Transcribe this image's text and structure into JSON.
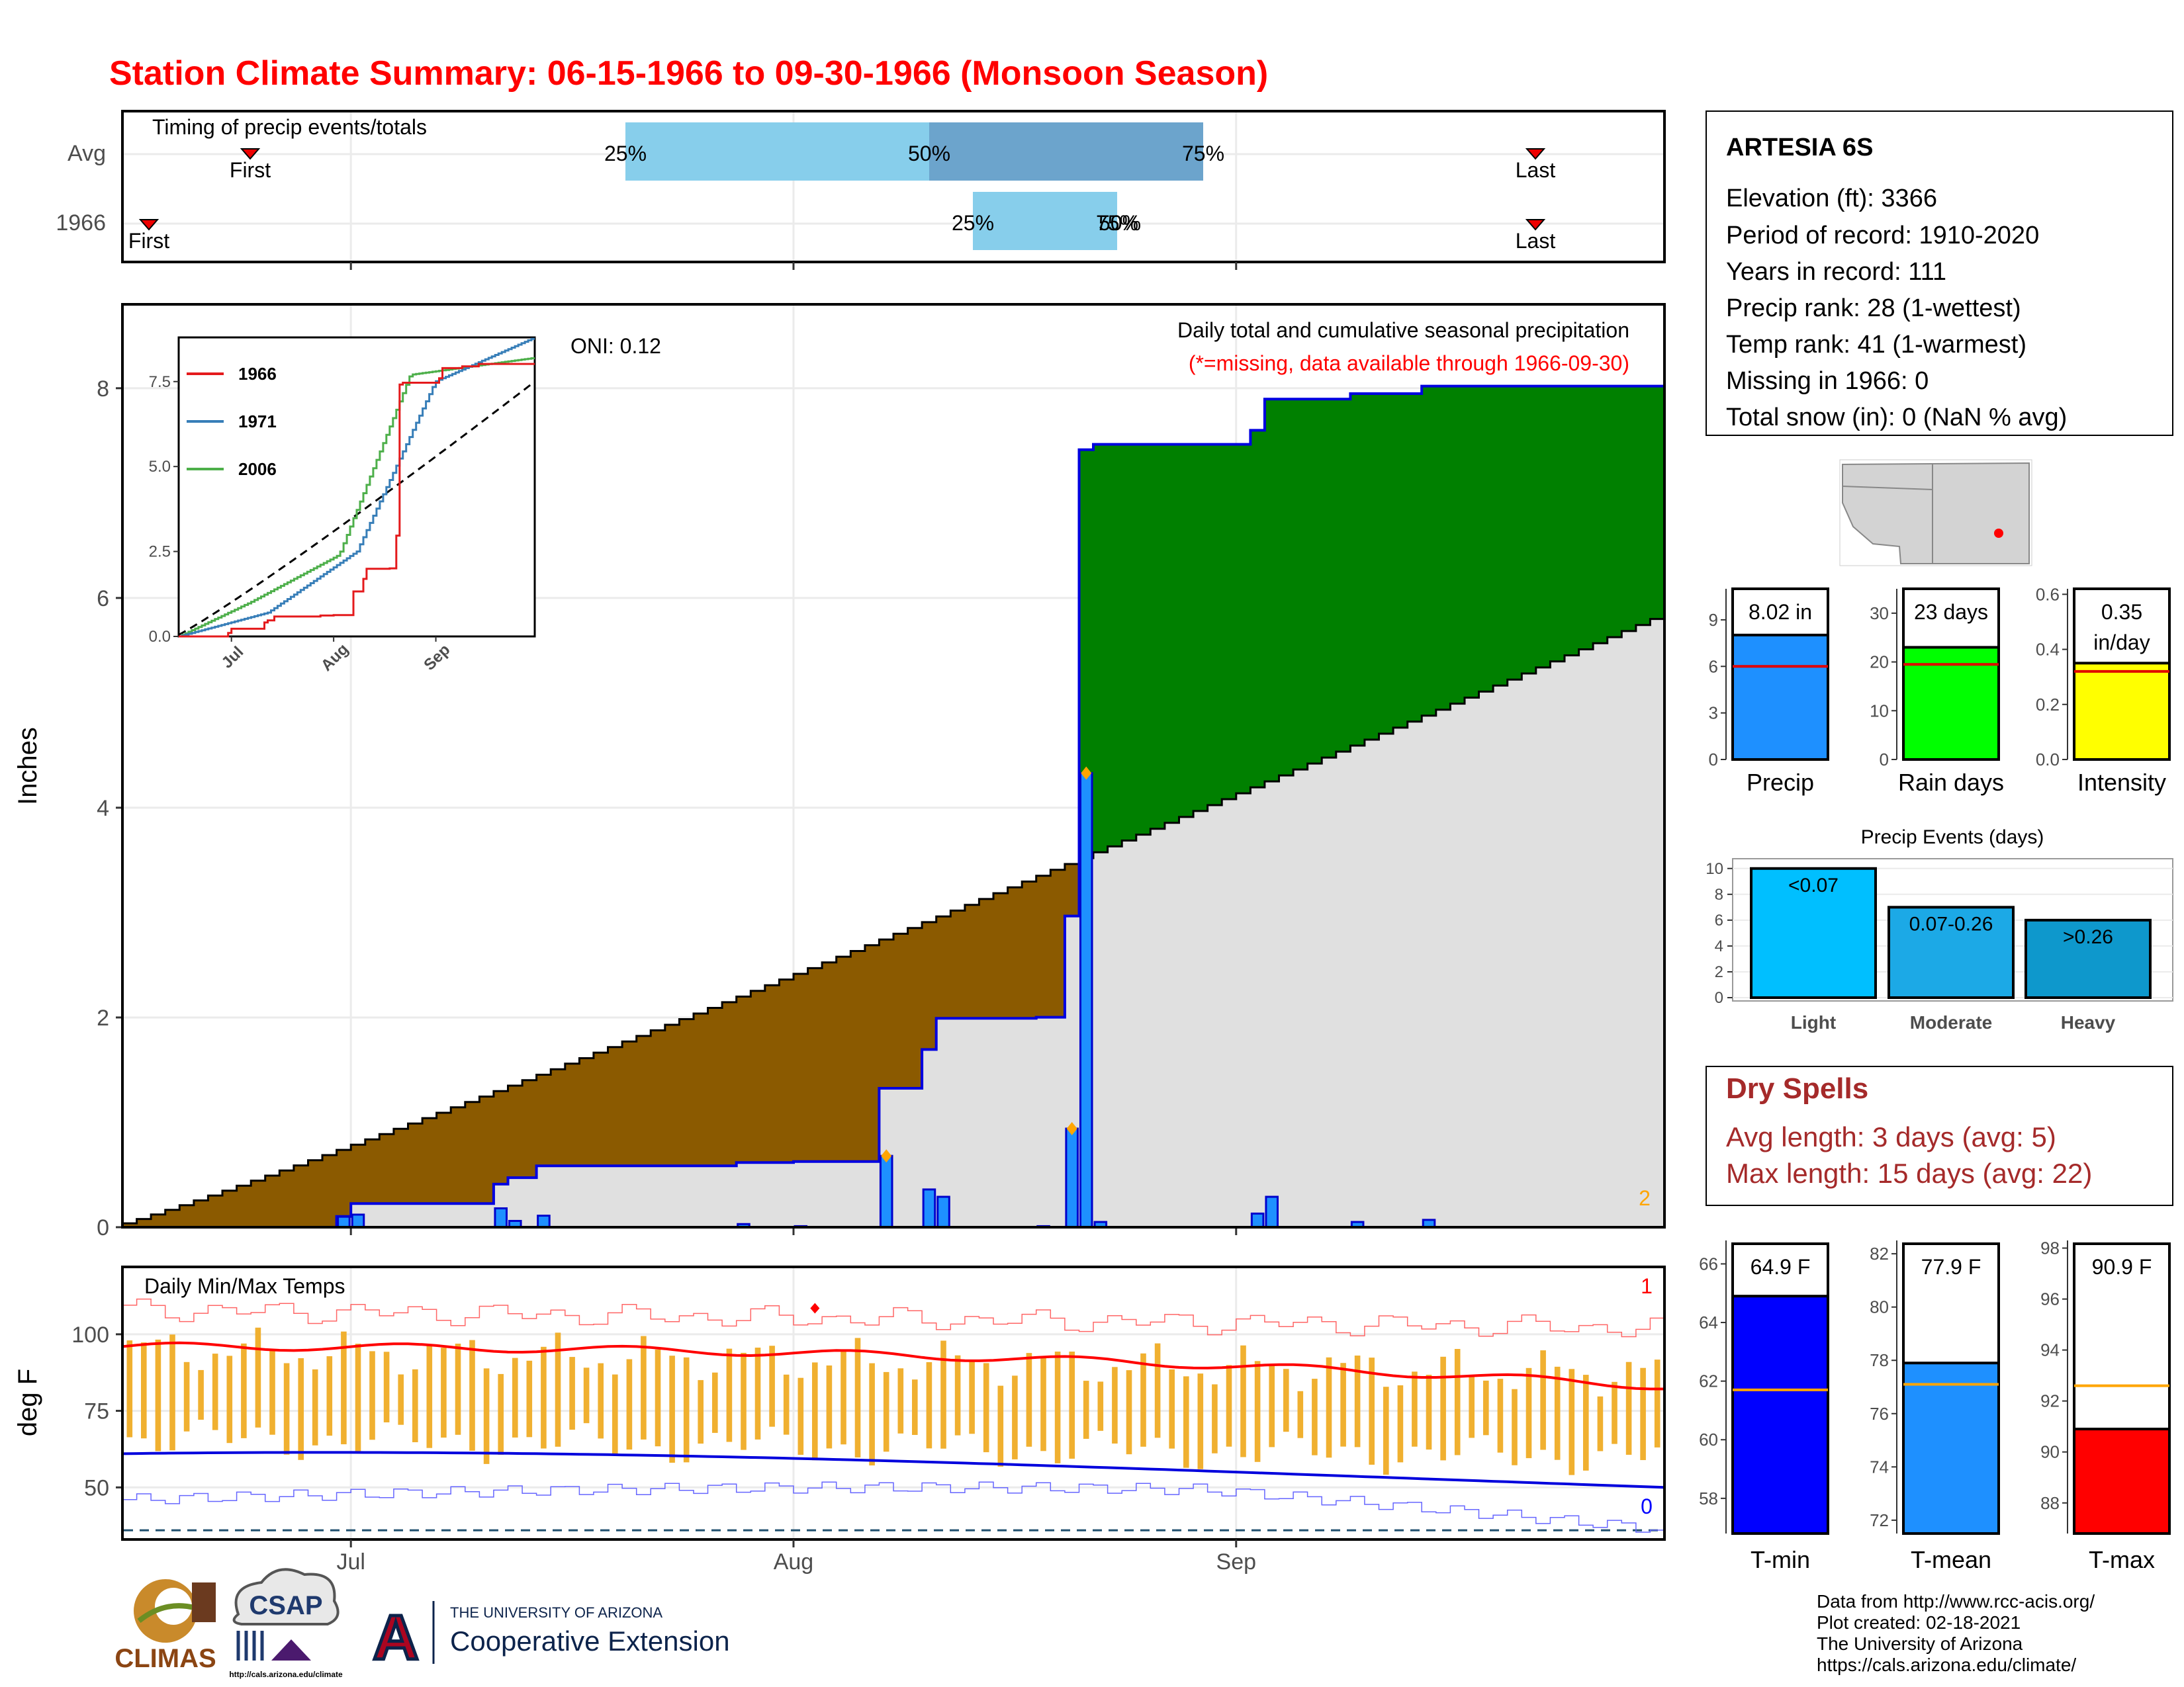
{
  "title": "Station Climate Summary: 06-15-1966 to 09-30-1966 (Monsoon Season)",
  "month_labels": [
    "Jul",
    "Aug",
    "Sep"
  ],
  "timing": {
    "label": "Timing of precip events/totals",
    "rows": [
      "Avg",
      "1966"
    ],
    "avg": {
      "first": "First",
      "last": "Last",
      "q25": "25%",
      "q50": "50%",
      "q75": "75%"
    },
    "y1966": {
      "first": "First",
      "last": "Last",
      "q25": "25%",
      "q50_75": "75%",
      "q50": "50%"
    }
  },
  "station": {
    "name": "ARTESIA 6S",
    "lines": [
      "Elevation (ft): 3366",
      "Period of record: 1910-2020",
      "Years in record: 111",
      "Precip rank: 28 (1-wettest)",
      "Temp rank: 41 (1-warmest)",
      "Missing in 1966: 0",
      "Total snow (in): 0 (NaN % avg)"
    ]
  },
  "precip_panel": {
    "ylabel": "Inches",
    "note1": "Daily total and cumulative seasonal precipitation",
    "note2": "(*=missing, data available through 1966-09-30)",
    "oni": "ONI: 0.12",
    "corner_count": "2"
  },
  "temp_panel": {
    "ylabel": "deg F",
    "label": "Daily Min/Max Temps",
    "count_top": "1",
    "count_bottom": "0"
  },
  "inset": {
    "series": [
      {
        "name": "1966",
        "color": "#e41a1c"
      },
      {
        "name": "1971",
        "color": "#377eb8"
      },
      {
        "name": "2006",
        "color": "#4daf4a"
      }
    ],
    "yticks": [
      "0.0",
      "2.5",
      "5.0",
      "7.5"
    ],
    "xticks": [
      "Jul",
      "Aug",
      "Sep"
    ]
  },
  "mini_bars": [
    {
      "label": "Precip",
      "value_text": "8.02 in",
      "color": "#1e90ff",
      "ticks": [
        "0",
        "3",
        "6",
        "9"
      ]
    },
    {
      "label": "Rain days",
      "value_text": "23 days",
      "color": "#00ff00",
      "ticks": [
        "0",
        "10",
        "20",
        "30"
      ]
    },
    {
      "label": "Intensity",
      "value_text": "0.35",
      "value_text2": "in/day",
      "color": "#ffff00",
      "ticks": [
        "0.0",
        "0.2",
        "0.4",
        "0.6"
      ]
    }
  ],
  "events": {
    "title": "Precip Events (days)",
    "bars": [
      {
        "label": "Light",
        "value_text": "<0.07",
        "color": "#00bfff"
      },
      {
        "label": "Moderate",
        "value_text": "0.07-0.26",
        "color": "#1ca9e6"
      },
      {
        "label": "Heavy",
        "value_text": ">0.26",
        "color": "#0e98cc"
      }
    ],
    "ticks": [
      "0",
      "2",
      "4",
      "6",
      "8",
      "10"
    ]
  },
  "dry_spells": {
    "title": "Dry Spells",
    "avg": "Avg length: 3 days (avg: 5)",
    "max": "Max length: 15 days (avg: 22)"
  },
  "temp_bars": [
    {
      "label": "T-min",
      "value_text": "64.9 F",
      "color": "#0000ff",
      "ticks": [
        "58",
        "60",
        "62",
        "64",
        "66"
      ]
    },
    {
      "label": "T-mean",
      "value_text": "77.9 F",
      "color": "#1e90ff",
      "ticks": [
        "72",
        "74",
        "76",
        "78",
        "80",
        "82"
      ]
    },
    {
      "label": "T-max",
      "value_text": "90.9 F",
      "color": "#ff0000",
      "ticks": [
        "88",
        "90",
        "92",
        "94",
        "96",
        "98"
      ]
    }
  ],
  "footer": {
    "lines": [
      "Data from http://www.rcc-acis.org/",
      "Plot created: 02-18-2021",
      "The University of Arizona",
      "https://cals.arizona.edu/climate/"
    ]
  },
  "logos": {
    "climas": "CLIMAS",
    "csap": "CSAP",
    "csap_url": "http://cals.arizona.edu/climate",
    "ua_top": "THE UNIVERSITY OF ARIZONA",
    "ua_bottom": "Cooperative Extension",
    "ua_letter": "A"
  },
  "chart_data": [
    {
      "type": "area",
      "title": "Daily total and cumulative seasonal precipitation",
      "ylabel": "Inches",
      "ylim": [
        0,
        8.8
      ],
      "x_start": "1966-06-15",
      "x_end": "1966-09-30",
      "daily_precip": [
        {
          "date": "1966-06-30",
          "value": 0.1
        },
        {
          "date": "1966-07-01",
          "value": 0.12
        },
        {
          "date": "1966-07-11",
          "value": 0.18
        },
        {
          "date": "1966-07-12",
          "value": 0.06
        },
        {
          "date": "1966-07-14",
          "value": 0.11
        },
        {
          "date": "1966-07-28",
          "value": 0.03
        },
        {
          "date": "1966-08-01",
          "value": 0.01
        },
        {
          "date": "1966-08-07",
          "value": 0.68
        },
        {
          "date": "1966-08-10",
          "value": 0.36
        },
        {
          "date": "1966-08-11",
          "value": 0.29
        },
        {
          "date": "1966-08-18",
          "value": 0.01
        },
        {
          "date": "1966-08-20",
          "value": 0.94
        },
        {
          "date": "1966-08-21",
          "value": 4.33
        },
        {
          "date": "1966-08-22",
          "value": 0.05
        },
        {
          "date": "1966-09-02",
          "value": 0.13
        },
        {
          "date": "1966-09-03",
          "value": 0.29
        },
        {
          "date": "1966-09-09",
          "value": 0.05
        },
        {
          "date": "1966-09-14",
          "value": 0.07
        }
      ],
      "cumulative_1966_end": 8.02,
      "average_cumulative_end": 5.8
    },
    {
      "type": "line",
      "title": "Daily Min/Max Temps",
      "ylabel": "deg F",
      "yticks": [
        50,
        75,
        100
      ],
      "avg_max_start": 96,
      "avg_max_end": 83,
      "avg_min_start": 61,
      "avg_min_end": 50
    },
    {
      "type": "bar",
      "categories": [
        "Precip",
        "Rain days",
        "Intensity"
      ],
      "values": [
        8.02,
        23,
        0.35
      ],
      "averages": [
        6,
        19.5,
        0.32
      ]
    },
    {
      "type": "bar",
      "title": "Precip Events (days)",
      "categories": [
        "Light",
        "Moderate",
        "Heavy"
      ],
      "values": [
        10,
        7,
        6
      ]
    },
    {
      "type": "bar",
      "categories": [
        "T-min",
        "T-mean",
        "T-max"
      ],
      "values": [
        64.9,
        77.9,
        90.9
      ],
      "averages": [
        61.7,
        77.1,
        92.6
      ]
    }
  ]
}
